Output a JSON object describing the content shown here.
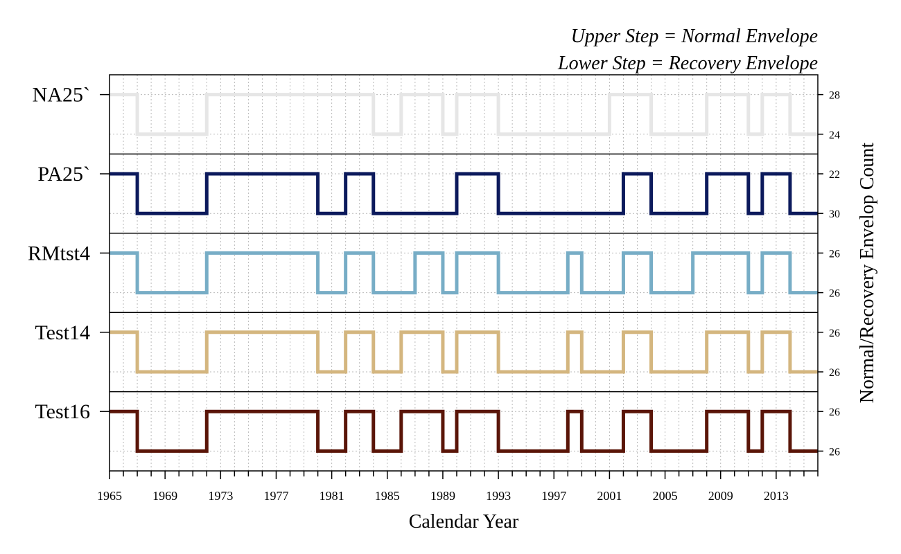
{
  "chart_data": {
    "type": "line",
    "step": true,
    "annotations": [
      "Upper Step = Normal Envelope",
      "Lower Step = Recovery Envelope"
    ],
    "xlabel": "Calendar Year",
    "ylabel": "Normal/Recovery Envelop Count",
    "xlim": [
      1965,
      2016
    ],
    "x_ticks": [
      1965,
      1969,
      1973,
      1977,
      1981,
      1985,
      1989,
      1993,
      1997,
      2001,
      2005,
      2009,
      2013
    ],
    "grid": true,
    "states": [
      "Upper Step (Normal Envelope)",
      "Lower Step (Recovery Envelope)"
    ],
    "series": [
      {
        "name": "NA25`",
        "color": "#e6e6e6",
        "upper_count": "28",
        "lower_count": "24",
        "x": [
          1965,
          1967,
          1972,
          1984,
          1986,
          1989,
          1990,
          1993,
          2001,
          2004,
          2008,
          2011,
          2012,
          2014,
          2016
        ],
        "state": [
          1,
          0,
          1,
          0,
          1,
          0,
          1,
          0,
          1,
          0,
          1,
          0,
          1,
          0,
          0
        ]
      },
      {
        "name": "PA25`",
        "color": "#0c1a5c",
        "upper_count": "22",
        "lower_count": "30",
        "x": [
          1965,
          1967,
          1972,
          1980,
          1982,
          1984,
          1990,
          1993,
          2002,
          2004,
          2008,
          2011,
          2012,
          2014,
          2016
        ],
        "state": [
          1,
          0,
          1,
          0,
          1,
          0,
          1,
          0,
          1,
          0,
          1,
          0,
          1,
          0,
          0
        ]
      },
      {
        "name": "RMtst4",
        "color": "#77adc6",
        "upper_count": "26",
        "lower_count": "26",
        "x": [
          1965,
          1967,
          1972,
          1980,
          1982,
          1984,
          1987,
          1989,
          1990,
          1993,
          1998,
          1999,
          2002,
          2004,
          2007,
          2011,
          2012,
          2014,
          2016
        ],
        "state": [
          1,
          0,
          1,
          0,
          1,
          0,
          1,
          0,
          1,
          0,
          1,
          0,
          1,
          0,
          1,
          0,
          1,
          0,
          0
        ]
      },
      {
        "name": "Test14",
        "color": "#d4b67f",
        "upper_count": "26",
        "lower_count": "26",
        "x": [
          1965,
          1967,
          1972,
          1980,
          1982,
          1984,
          1986,
          1989,
          1990,
          1993,
          1998,
          1999,
          2002,
          2004,
          2008,
          2011,
          2012,
          2014,
          2016
        ],
        "state": [
          1,
          0,
          1,
          0,
          1,
          0,
          1,
          0,
          1,
          0,
          1,
          0,
          1,
          0,
          1,
          0,
          1,
          0,
          0
        ]
      },
      {
        "name": "Test16",
        "color": "#5a1508",
        "upper_count": "26",
        "lower_count": "26",
        "x": [
          1965,
          1967,
          1972,
          1980,
          1982,
          1984,
          1986,
          1989,
          1990,
          1993,
          1998,
          1999,
          2002,
          2004,
          2008,
          2011,
          2012,
          2014,
          2016
        ],
        "state": [
          1,
          0,
          1,
          0,
          1,
          0,
          1,
          0,
          1,
          0,
          1,
          0,
          1,
          0,
          1,
          0,
          1,
          0,
          0
        ]
      }
    ]
  }
}
